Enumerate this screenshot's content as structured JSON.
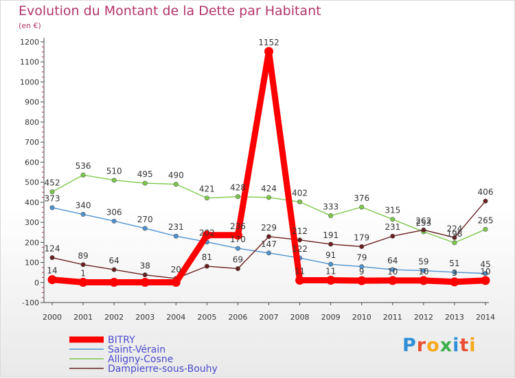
{
  "chart_data": {
    "type": "line",
    "title": "Evolution du Montant de la Dette par Habitant",
    "subtitle": "(en €)",
    "x": [
      2000,
      2001,
      2002,
      2003,
      2004,
      2005,
      2006,
      2007,
      2008,
      2009,
      2010,
      2011,
      2012,
      2013,
      2014
    ],
    "ylim": [
      -100,
      1200
    ],
    "yticks": [
      -100,
      0,
      100,
      200,
      300,
      400,
      500,
      600,
      700,
      800,
      900,
      1000,
      1100,
      1200
    ],
    "grid": false,
    "legend_position": "bottom-left",
    "series": [
      {
        "name": "BITRY",
        "color": "#ff0000",
        "values": [
          14,
          1,
          1,
          1,
          1,
          236,
          236,
          1152,
          11,
          11,
          9,
          10,
          10,
          3,
          10
        ],
        "labels": [
          "14",
          "1",
          "",
          "",
          "",
          "",
          "236",
          "1152",
          "11",
          "11",
          "9",
          "10",
          "10",
          "3",
          "10"
        ]
      },
      {
        "name": "Saint-Vérain",
        "color": "#4e93cf",
        "values": [
          373,
          340,
          306,
          270,
          231,
          202,
          170,
          147,
          122,
          91,
          79,
          64,
          59,
          51,
          45
        ],
        "labels": [
          "373",
          "340",
          "306",
          "270",
          "231",
          "202",
          "170",
          "147",
          "122",
          "91",
          "79",
          "64",
          "59",
          "51",
          "45"
        ]
      },
      {
        "name": "Alligny-Cosne",
        "color": "#7dc94a",
        "values": [
          452,
          536,
          510,
          495,
          490,
          421,
          428,
          424,
          402,
          333,
          376,
          315,
          253,
          198,
          265
        ],
        "labels": [
          "452",
          "536",
          "510",
          "495",
          "490",
          "421",
          "428",
          "424",
          "402",
          "333",
          "376",
          "315",
          "253",
          "198",
          "265"
        ]
      },
      {
        "name": "Dampierre-sous-Bouhy",
        "color": "#6a1f1f",
        "values": [
          124,
          89,
          64,
          38,
          20,
          81,
          69,
          229,
          212,
          191,
          179,
          231,
          262,
          224,
          406
        ],
        "labels": [
          "124",
          "89",
          "64",
          "38",
          "20",
          "81",
          "69",
          "229",
          "212",
          "191",
          "179",
          "231",
          "262",
          "224",
          "406"
        ]
      }
    ]
  },
  "logo_text": "Proxiti",
  "logo_letters": [
    "P",
    "r",
    "o",
    "x",
    "i",
    "t",
    "i"
  ]
}
